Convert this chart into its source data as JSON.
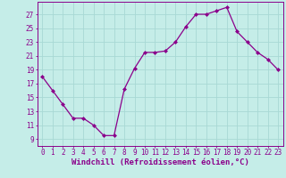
{
  "x": [
    0,
    1,
    2,
    3,
    4,
    5,
    6,
    7,
    8,
    9,
    10,
    11,
    12,
    13,
    14,
    15,
    16,
    17,
    18,
    19,
    20,
    21,
    22,
    23
  ],
  "y": [
    18.0,
    16.0,
    14.0,
    12.0,
    12.0,
    11.0,
    9.5,
    9.5,
    16.2,
    19.2,
    21.5,
    21.5,
    21.7,
    23.0,
    25.2,
    27.0,
    27.0,
    27.5,
    28.0,
    24.5,
    23.0,
    21.5,
    20.5,
    19.0
  ],
  "line_color": "#8B008B",
  "marker": "D",
  "marker_size": 2.0,
  "bg_color": "#C5EDE8",
  "grid_color": "#A8D8D4",
  "xlabel": "Windchill (Refroidissement éolien,°C)",
  "xlabel_color": "#8B008B",
  "xlabel_fontsize": 6.5,
  "xtick_labels": [
    "0",
    "1",
    "2",
    "3",
    "4",
    "5",
    "6",
    "7",
    "8",
    "9",
    "10",
    "11",
    "12",
    "13",
    "14",
    "15",
    "16",
    "17",
    "18",
    "19",
    "20",
    "21",
    "22",
    "23"
  ],
  "ytick_labels": [
    "9",
    "11",
    "13",
    "15",
    "17",
    "19",
    "21",
    "23",
    "25",
    "27"
  ],
  "ytick_values": [
    9,
    11,
    13,
    15,
    17,
    19,
    21,
    23,
    25,
    27
  ],
  "ylim": [
    8.0,
    28.8
  ],
  "xlim": [
    -0.5,
    23.5
  ],
  "tick_color": "#8B008B",
  "tick_fontsize": 5.5,
  "spine_color": "#8B008B",
  "linewidth": 0.9
}
